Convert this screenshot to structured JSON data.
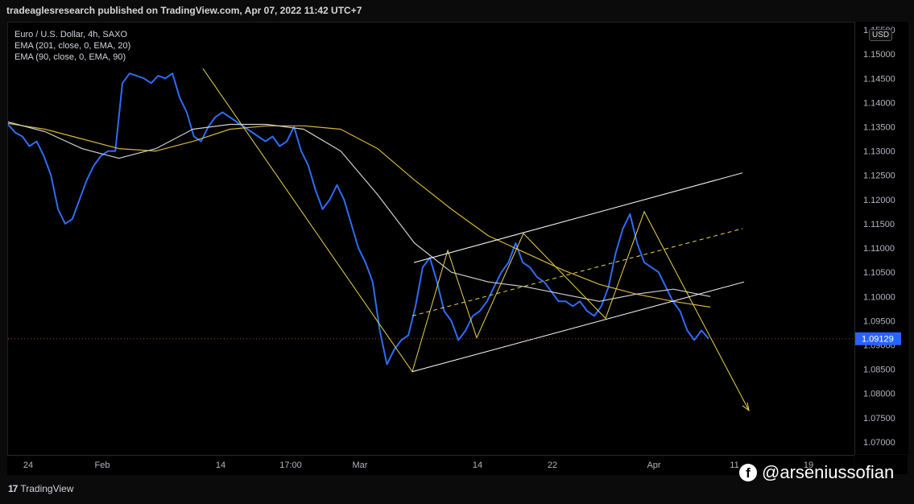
{
  "header": {
    "published_by": "tradeaglesresearch published on TradingView.com, Apr 07, 2022 11:42 UTC+7"
  },
  "legend": {
    "symbol": "Euro / U.S. Dollar, 4h, SAXO",
    "ema1": "EMA (201, close, 0, EMA, 20)",
    "ema2": "EMA (90, close, 0, EMA, 90)"
  },
  "currency_badge": "USD",
  "footer": {
    "brand": "TradingView",
    "logo": "tv-logo-icon"
  },
  "watermark": {
    "handle": "@arseniussofian",
    "icon": "facebook-icon"
  },
  "colors": {
    "price_line": "#2f6cf6",
    "ema_yellow": "#d7b53a",
    "ema_white": "#cfcfcf",
    "drawing_yellow": "#e8d44d",
    "channel": "#ffffff",
    "last_price_bg": "#2962ff"
  },
  "chart_data": {
    "type": "line",
    "title": "Euro / U.S. Dollar, 4h, SAXO",
    "ylim": [
      1.0675,
      1.1565
    ],
    "grid": false,
    "x_tick_labels": [
      "24",
      "Feb",
      "14",
      "17:00",
      "Mar",
      "14",
      "22",
      "Apr",
      "11",
      "19"
    ],
    "y_tick_labels": [
      "1.15500",
      "1.15000",
      "1.14500",
      "1.14000",
      "1.13500",
      "1.13000",
      "1.12500",
      "1.12000",
      "1.11500",
      "1.11000",
      "1.10500",
      "1.10000",
      "1.09500",
      "1.09000",
      "1.08500",
      "1.08000",
      "1.07500",
      "1.07000"
    ],
    "last_price": "1.09129",
    "series": [
      {
        "name": "Euro / U.S. Dollar",
        "color": "#2f6cf6",
        "values": [
          1.1355,
          1.1338,
          1.133,
          1.131,
          1.132,
          1.129,
          1.125,
          1.118,
          1.115,
          1.116,
          1.12,
          1.124,
          1.127,
          1.129,
          1.13,
          1.13,
          1.144,
          1.146,
          1.1455,
          1.145,
          1.144,
          1.1455,
          1.145,
          1.146,
          1.141,
          1.138,
          1.133,
          1.132,
          1.135,
          1.137,
          1.138,
          1.137,
          1.136,
          1.135,
          1.134,
          1.133,
          1.132,
          1.133,
          1.131,
          1.132,
          1.135,
          1.13,
          1.127,
          1.122,
          1.118,
          1.12,
          1.123,
          1.12,
          1.115,
          1.11,
          1.107,
          1.103,
          1.093,
          1.086,
          1.089,
          1.091,
          1.092,
          1.098,
          1.106,
          1.108,
          1.103,
          1.097,
          1.095,
          1.091,
          1.093,
          1.096,
          1.097,
          1.099,
          1.102,
          1.105,
          1.107,
          1.111,
          1.107,
          1.106,
          1.104,
          1.103,
          1.101,
          1.099,
          1.099,
          1.098,
          1.099,
          1.097,
          1.096,
          1.098,
          1.102,
          1.109,
          1.114,
          1.117,
          1.111,
          1.107,
          1.106,
          1.105,
          1.102,
          1.099,
          1.097,
          1.093,
          1.091,
          1.093,
          1.0913
        ]
      },
      {
        "name": "EMA (201, close, 0, EMA, 20)",
        "color": "#d7b53a",
        "values": [
          1.1357,
          1.1345,
          1.1325,
          1.1305,
          1.13,
          1.132,
          1.1345,
          1.1352,
          1.1352,
          1.1345,
          1.1305,
          1.124,
          1.118,
          1.1125,
          1.109,
          1.1055,
          1.1025,
          1.1005,
          1.099,
          1.0978
        ]
      },
      {
        "name": "EMA (90, close, 0, EMA, 90)",
        "color": "#cfcfcf",
        "values": [
          1.136,
          1.134,
          1.1305,
          1.1285,
          1.1305,
          1.1345,
          1.1355,
          1.1355,
          1.1345,
          1.13,
          1.121,
          1.111,
          1.105,
          1.103,
          1.102,
          1.1005,
          1.099,
          1.1005,
          1.1015,
          1.1
        ]
      }
    ]
  }
}
